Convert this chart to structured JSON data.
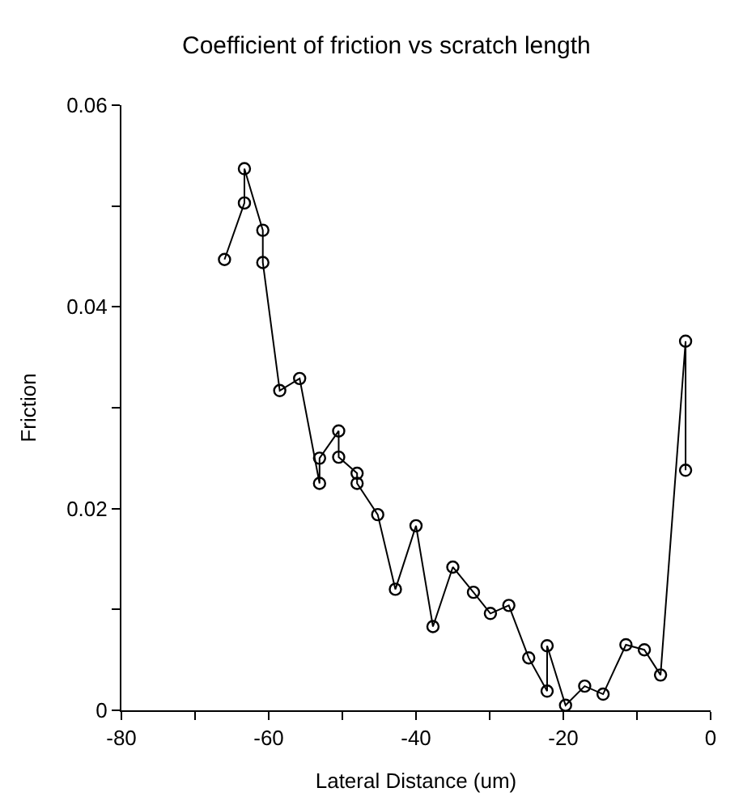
{
  "chart_data": {
    "type": "line",
    "title": "Coefficient of friction vs scratch length",
    "xlabel": "Lateral Distance (um)",
    "ylabel": "Friction",
    "x": [
      -66.0,
      -63.3,
      -63.3,
      -60.8,
      -60.8,
      -58.5,
      -55.8,
      -53.1,
      -53.1,
      -50.5,
      -50.5,
      -48.0,
      -48.0,
      -45.2,
      -42.8,
      -40.0,
      -37.7,
      -35.0,
      -32.2,
      -29.9,
      -27.4,
      -24.7,
      -22.2,
      -22.2,
      -19.7,
      -17.1,
      -14.6,
      -11.5,
      -9.0,
      -6.8,
      -3.4,
      -3.4
    ],
    "series": [
      {
        "color": "#000000",
        "values": [
          0.0447,
          0.0503,
          0.0537,
          0.0476,
          0.0444,
          0.0317,
          0.0329,
          0.0225,
          0.025,
          0.0277,
          0.0251,
          0.0235,
          0.0225,
          0.0194,
          0.012,
          0.0183,
          0.0083,
          0.0142,
          0.0117,
          0.0096,
          0.0104,
          0.0052,
          0.0019,
          0.0064,
          0.0005,
          0.0024,
          0.0016,
          0.0065,
          0.006,
          0.0035,
          0.0366,
          0.0238
        ]
      }
    ],
    "xlim": [
      -80,
      0
    ],
    "xticks": [
      -80,
      {
        "value": -70,
        "label": null
      },
      -60,
      {
        "value": -50,
        "label": null
      },
      -40,
      {
        "value": -30,
        "label": null
      },
      -20,
      {
        "value": -10,
        "label": null
      },
      0
    ],
    "ylim": [
      0,
      0.06
    ],
    "yticks": [
      0,
      {
        "value": 0.01,
        "label": null
      },
      0.02,
      {
        "value": 0.03,
        "label": null
      },
      0.04,
      {
        "value": 0.05,
        "label": null
      },
      0.06
    ],
    "marker": "circle",
    "line_style": "solid"
  }
}
